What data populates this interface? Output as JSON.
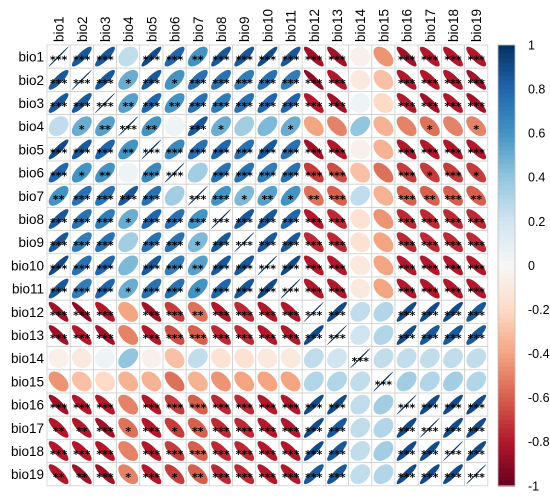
{
  "chart_data": {
    "type": "heatmap",
    "variables": [
      "bio1",
      "bio2",
      "bio3",
      "bio4",
      "bio5",
      "bio6",
      "bio7",
      "bio8",
      "bio9",
      "bio10",
      "bio11",
      "bio12",
      "bio13",
      "bio14",
      "bio15",
      "bio16",
      "bio17",
      "bio18",
      "bio19"
    ],
    "correlation_matrix": [
      [
        1,
        0.85,
        0.85,
        0.25,
        0.9,
        0.8,
        0.6,
        0.85,
        0.85,
        0.9,
        0.85,
        -0.85,
        -0.85,
        -0.05,
        -0.45,
        -0.85,
        -0.8,
        -0.8,
        -0.8
      ],
      [
        0.85,
        1,
        0.85,
        0.5,
        0.85,
        0.6,
        0.75,
        0.75,
        0.7,
        0.75,
        0.7,
        -0.9,
        -0.8,
        -0.1,
        -0.3,
        -0.8,
        -0.8,
        -0.8,
        -0.85
      ],
      [
        0.85,
        0.85,
        1,
        0.55,
        0.8,
        0.6,
        0.75,
        0.7,
        0.75,
        0.8,
        0.8,
        -0.8,
        -0.85,
        0.05,
        -0.2,
        -0.8,
        -0.85,
        -0.8,
        -0.85
      ],
      [
        0.25,
        0.5,
        0.55,
        1,
        0.6,
        0.05,
        0.85,
        0.5,
        0.35,
        0.45,
        0.5,
        -0.4,
        -0.5,
        0.4,
        -0.35,
        -0.5,
        -0.55,
        -0.5,
        -0.5
      ],
      [
        0.9,
        0.85,
        0.8,
        0.6,
        1,
        0.65,
        0.75,
        0.8,
        0.75,
        0.85,
        0.75,
        -0.85,
        -0.8,
        -0.05,
        -0.35,
        -0.8,
        -0.8,
        -0.8,
        -0.8
      ],
      [
        0.8,
        0.6,
        0.6,
        0.05,
        0.65,
        1,
        0.35,
        0.75,
        0.75,
        0.7,
        0.75,
        -0.7,
        -0.65,
        -0.3,
        -0.55,
        -0.7,
        -0.7,
        -0.7,
        -0.7
      ],
      [
        0.6,
        0.75,
        0.75,
        0.85,
        0.75,
        0.35,
        1,
        0.6,
        0.45,
        0.55,
        0.6,
        -0.55,
        -0.6,
        0.25,
        -0.35,
        -0.6,
        -0.6,
        -0.6,
        -0.6
      ],
      [
        0.85,
        0.75,
        0.7,
        0.5,
        0.8,
        0.75,
        0.6,
        1,
        0.85,
        0.85,
        0.8,
        -0.8,
        -0.75,
        -0.15,
        -0.45,
        -0.75,
        -0.75,
        -0.75,
        -0.75
      ],
      [
        0.85,
        0.7,
        0.75,
        0.35,
        0.75,
        0.75,
        0.45,
        0.85,
        1,
        0.85,
        0.85,
        -0.75,
        -0.75,
        -0.15,
        -0.4,
        -0.75,
        -0.75,
        -0.75,
        -0.75
      ],
      [
        0.9,
        0.75,
        0.8,
        0.45,
        0.85,
        0.7,
        0.55,
        0.85,
        0.85,
        1,
        0.9,
        -0.8,
        -0.8,
        -0.1,
        -0.4,
        -0.8,
        -0.8,
        -0.8,
        -0.8
      ],
      [
        0.85,
        0.7,
        0.8,
        0.5,
        0.75,
        0.75,
        0.6,
        0.8,
        0.85,
        0.9,
        1,
        -0.8,
        -0.8,
        -0.1,
        -0.4,
        -0.8,
        -0.8,
        -0.8,
        -0.8
      ],
      [
        -0.85,
        -0.9,
        -0.8,
        -0.4,
        -0.85,
        -0.7,
        -0.55,
        -0.8,
        -0.75,
        -0.8,
        -0.8,
        1,
        0.9,
        0.25,
        0.3,
        0.9,
        0.9,
        0.9,
        0.85
      ],
      [
        -0.85,
        -0.8,
        -0.85,
        -0.5,
        -0.8,
        -0.65,
        -0.6,
        -0.75,
        -0.75,
        -0.8,
        -0.8,
        0.9,
        1,
        0.2,
        0.3,
        0.9,
        0.85,
        0.85,
        0.85
      ],
      [
        -0.05,
        -0.1,
        0.05,
        0.4,
        -0.05,
        -0.3,
        0.25,
        -0.15,
        -0.15,
        -0.1,
        -0.1,
        0.25,
        0.2,
        1,
        0.25,
        0.25,
        0.25,
        0.25,
        0.25
      ],
      [
        -0.45,
        -0.3,
        -0.2,
        -0.35,
        -0.35,
        -0.55,
        -0.35,
        -0.45,
        -0.4,
        -0.4,
        -0.4,
        0.3,
        0.3,
        0.25,
        1,
        0.35,
        0.3,
        0.35,
        0.3
      ],
      [
        -0.85,
        -0.8,
        -0.8,
        -0.5,
        -0.8,
        -0.7,
        -0.6,
        -0.75,
        -0.75,
        -0.8,
        -0.8,
        0.9,
        0.9,
        0.25,
        0.35,
        1,
        0.9,
        0.9,
        0.9
      ],
      [
        -0.8,
        -0.8,
        -0.85,
        -0.55,
        -0.8,
        -0.7,
        -0.6,
        -0.75,
        -0.75,
        -0.8,
        -0.8,
        0.9,
        0.85,
        0.25,
        0.3,
        0.9,
        1,
        0.9,
        0.9
      ],
      [
        -0.8,
        -0.8,
        -0.8,
        -0.5,
        -0.8,
        -0.7,
        -0.6,
        -0.75,
        -0.75,
        -0.8,
        -0.8,
        0.9,
        0.85,
        0.25,
        0.35,
        0.9,
        0.9,
        1,
        0.9
      ],
      [
        -0.8,
        -0.85,
        -0.85,
        -0.5,
        -0.8,
        -0.7,
        -0.6,
        -0.75,
        -0.75,
        -0.8,
        -0.8,
        0.85,
        0.85,
        0.25,
        0.3,
        0.9,
        0.9,
        0.9,
        1
      ]
    ],
    "significance_matrix": [
      [
        "***",
        "***",
        "***",
        "",
        "***",
        "***",
        "**",
        "***",
        "***",
        "***",
        "***",
        "***",
        "***",
        "",
        "",
        "***",
        "***",
        "***",
        "***"
      ],
      [
        "***",
        "***",
        "***",
        "*",
        "***",
        "*",
        "***",
        "***",
        "***",
        "***",
        "***",
        "***",
        "***",
        "",
        "",
        "***",
        "***",
        "***",
        "***"
      ],
      [
        "***",
        "***",
        "***",
        "**",
        "***",
        "**",
        "***",
        "***",
        "***",
        "***",
        "***",
        "***",
        "***",
        "",
        "",
        "***",
        "***",
        "***",
        "***"
      ],
      [
        "",
        "*",
        "**",
        "***",
        "**",
        "",
        "***",
        "*",
        "",
        "",
        "*",
        "",
        "",
        "",
        "",
        "",
        "*",
        "",
        "*"
      ],
      [
        "***",
        "***",
        "***",
        "**",
        "***",
        "***",
        "***",
        "***",
        "***",
        "***",
        "***",
        "***",
        "***",
        "",
        "",
        "***",
        "***",
        "***",
        "***"
      ],
      [
        "***",
        "*",
        "**",
        "",
        "***",
        "***",
        "",
        "***",
        "***",
        "***",
        "***",
        "***",
        "***",
        "",
        "",
        "***",
        "*",
        "***",
        "*"
      ],
      [
        "**",
        "***",
        "***",
        "***",
        "***",
        "",
        "***",
        "***",
        "*",
        "**",
        "*",
        "**",
        "***",
        "",
        "",
        "***",
        "**",
        "***",
        "**"
      ],
      [
        "***",
        "***",
        "***",
        "*",
        "***",
        "***",
        "***",
        "***",
        "***",
        "***",
        "***",
        "***",
        "***",
        "",
        "",
        "***",
        "***",
        "***",
        "***"
      ],
      [
        "***",
        "***",
        "***",
        "",
        "***",
        "***",
        "*",
        "***",
        "***",
        "***",
        "***",
        "***",
        "***",
        "",
        "",
        "***",
        "***",
        "***",
        "***"
      ],
      [
        "***",
        "***",
        "***",
        "",
        "***",
        "***",
        "**",
        "***",
        "***",
        "***",
        "***",
        "***",
        "***",
        "",
        "",
        "***",
        "***",
        "***",
        "***"
      ],
      [
        "***",
        "***",
        "***",
        "*",
        "***",
        "***",
        "*",
        "***",
        "***",
        "***",
        "***",
        "***",
        "***",
        "",
        "",
        "***",
        "***",
        "***",
        "***"
      ],
      [
        "***",
        "***",
        "***",
        "",
        "***",
        "***",
        "**",
        "***",
        "***",
        "***",
        "***",
        "***",
        "***",
        "",
        "",
        "***",
        "***",
        "***",
        "***"
      ],
      [
        "***",
        "***",
        "***",
        "",
        "***",
        "***",
        "***",
        "***",
        "***",
        "***",
        "***",
        "***",
        "***",
        "",
        "",
        "***",
        "***",
        "***",
        "***"
      ],
      [
        "",
        "",
        "",
        "",
        "",
        "",
        "",
        "",
        "",
        "",
        "",
        "",
        "",
        "***",
        "",
        "",
        "",
        "",
        ""
      ],
      [
        "",
        "",
        "",
        "",
        "",
        "",
        "",
        "",
        "",
        "",
        "",
        "",
        "",
        "",
        "***",
        "",
        "",
        "",
        ""
      ],
      [
        "***",
        "***",
        "***",
        "",
        "***",
        "***",
        "***",
        "***",
        "***",
        "***",
        "***",
        "***",
        "***",
        "",
        "",
        "***",
        "***",
        "***",
        "***"
      ],
      [
        "**",
        "**",
        "***",
        "*",
        "***",
        "*",
        "**",
        "***",
        "***",
        "***",
        "***",
        "***",
        "***",
        "",
        "",
        "***",
        "***",
        "***",
        "***"
      ],
      [
        "***",
        "***",
        "***",
        "",
        "***",
        "***",
        "***",
        "***",
        "***",
        "***",
        "***",
        "***",
        "***",
        "",
        "",
        "***",
        "***",
        "***",
        "***"
      ],
      [
        "**",
        "**",
        "***",
        "*",
        "***",
        "*",
        "**",
        "***",
        "***",
        "***",
        "***",
        "***",
        "***",
        "",
        "",
        "***",
        "***",
        "***",
        "***"
      ]
    ],
    "colorbar": {
      "range": [
        -1,
        1
      ],
      "tick_labels": [
        "1",
        "0.8",
        "0.6",
        "0.4",
        "0.2",
        "0",
        "-0.2",
        "-0.4",
        "-0.6",
        "-0.8",
        "-1"
      ],
      "colors": {
        "negative": "#67001f",
        "neutral": "#f7f7f7",
        "positive": "#053061"
      }
    },
    "grid": true,
    "legend": "right"
  }
}
